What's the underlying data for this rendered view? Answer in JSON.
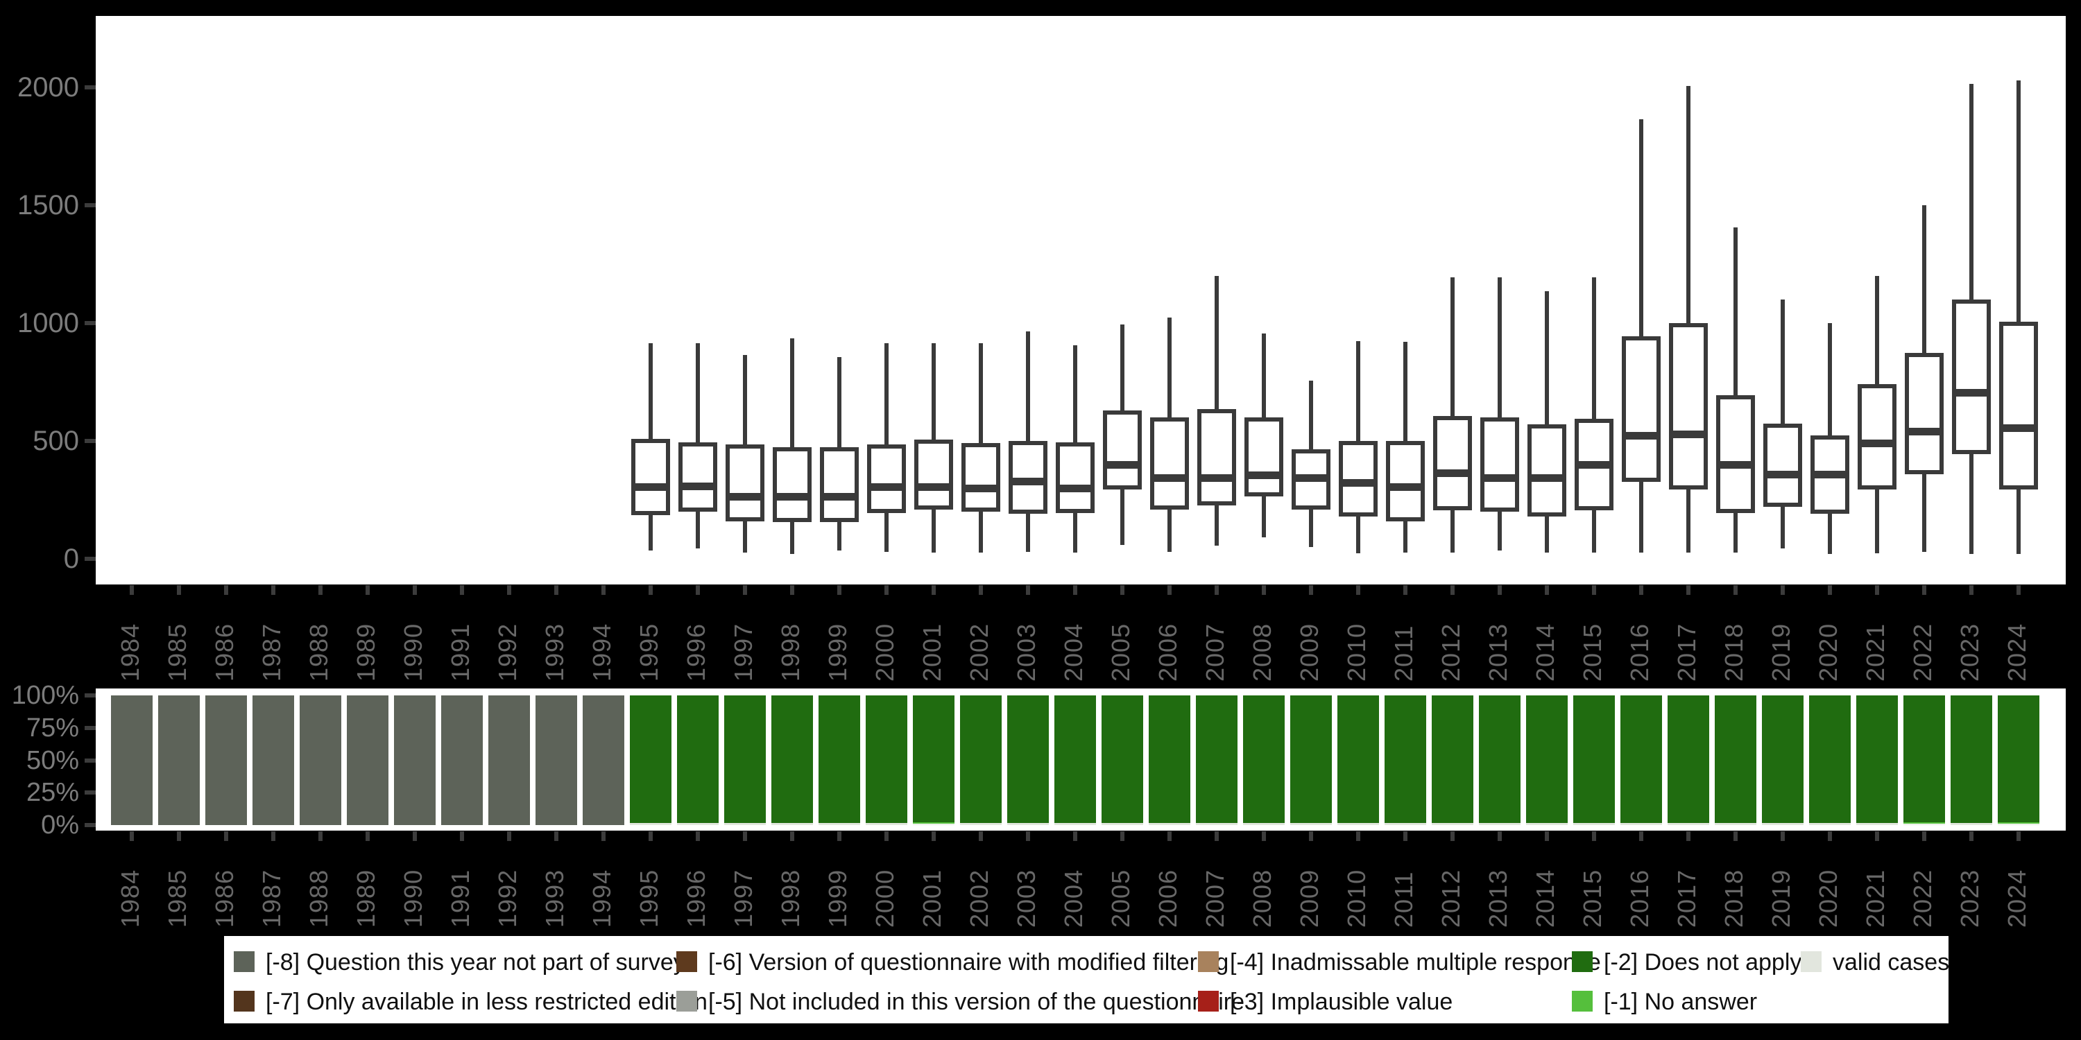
{
  "page": {
    "background": "#000000",
    "plot_background": "#ffffff"
  },
  "colors": {
    "box_stroke": "#3a3a3a",
    "axis_text": "#7c7c7c",
    "year_text": "#686868",
    "tick": "#3c3c3c",
    "q_not_part": "#5d6359",
    "less_restricted": "#53351d",
    "modified_filtering": "#5e3a1e",
    "not_included": "#9b9e98",
    "inadmissable": "#a8825d",
    "implausible": "#a62019",
    "does_not_apply": "#206c10",
    "no_answer": "#55bf3c",
    "valid": "#e2e6de"
  },
  "chart_data": [
    {
      "type": "boxplot",
      "title": "",
      "xlabel": "",
      "ylabel": "",
      "ytick_labels": [
        "0",
        "500",
        "1000",
        "1500",
        "2000"
      ],
      "ytick_values": [
        0,
        500,
        1000,
        1500,
        2000
      ],
      "ylim": [
        -110,
        2300
      ],
      "grid": false,
      "categories": [
        1984,
        1985,
        1986,
        1987,
        1988,
        1989,
        1990,
        1991,
        1992,
        1993,
        1994,
        1995,
        1996,
        1997,
        1998,
        1999,
        2000,
        2001,
        2002,
        2003,
        2004,
        2005,
        2006,
        2007,
        2008,
        2009,
        2010,
        2011,
        2012,
        2013,
        2014,
        2015,
        2016,
        2017,
        2018,
        2019,
        2020,
        2021,
        2022,
        2023,
        2024
      ],
      "empty_years": [
        1984,
        1985,
        1986,
        1987,
        1988,
        1989,
        1990,
        1991,
        1992,
        1993,
        1994
      ],
      "boxes": [
        {
          "year": 1995,
          "min": 35,
          "q1": 185,
          "median": 305,
          "q3": 510,
          "max": 915
        },
        {
          "year": 1996,
          "min": 45,
          "q1": 200,
          "median": 310,
          "q3": 495,
          "max": 915
        },
        {
          "year": 1997,
          "min": 25,
          "q1": 160,
          "median": 265,
          "q3": 485,
          "max": 865
        },
        {
          "year": 1998,
          "min": 20,
          "q1": 155,
          "median": 265,
          "q3": 475,
          "max": 935
        },
        {
          "year": 1999,
          "min": 35,
          "q1": 155,
          "median": 265,
          "q3": 475,
          "max": 855
        },
        {
          "year": 2000,
          "min": 30,
          "q1": 195,
          "median": 305,
          "q3": 485,
          "max": 915
        },
        {
          "year": 2001,
          "min": 25,
          "q1": 210,
          "median": 305,
          "q3": 505,
          "max": 915
        },
        {
          "year": 2002,
          "min": 25,
          "q1": 200,
          "median": 300,
          "q3": 490,
          "max": 915
        },
        {
          "year": 2003,
          "min": 30,
          "q1": 190,
          "median": 330,
          "q3": 500,
          "max": 965
        },
        {
          "year": 2004,
          "min": 25,
          "q1": 195,
          "median": 300,
          "q3": 495,
          "max": 905
        },
        {
          "year": 2005,
          "min": 60,
          "q1": 295,
          "median": 400,
          "q3": 630,
          "max": 995
        },
        {
          "year": 2006,
          "min": 30,
          "q1": 210,
          "median": 345,
          "q3": 600,
          "max": 1025
        },
        {
          "year": 2007,
          "min": 55,
          "q1": 225,
          "median": 345,
          "q3": 635,
          "max": 1200
        },
        {
          "year": 2008,
          "min": 90,
          "q1": 265,
          "median": 355,
          "q3": 600,
          "max": 955
        },
        {
          "year": 2009,
          "min": 50,
          "q1": 210,
          "median": 345,
          "q3": 465,
          "max": 755
        },
        {
          "year": 2010,
          "min": 25,
          "q1": 180,
          "median": 325,
          "q3": 500,
          "max": 925
        },
        {
          "year": 2011,
          "min": 25,
          "q1": 160,
          "median": 305,
          "q3": 500,
          "max": 920
        },
        {
          "year": 2012,
          "min": 25,
          "q1": 205,
          "median": 365,
          "q3": 605,
          "max": 1195
        },
        {
          "year": 2013,
          "min": 35,
          "q1": 200,
          "median": 345,
          "q3": 600,
          "max": 1195
        },
        {
          "year": 2014,
          "min": 25,
          "q1": 180,
          "median": 345,
          "q3": 570,
          "max": 1135
        },
        {
          "year": 2015,
          "min": 25,
          "q1": 205,
          "median": 400,
          "q3": 595,
          "max": 1195
        },
        {
          "year": 2016,
          "min": 25,
          "q1": 325,
          "median": 525,
          "q3": 945,
          "max": 1865
        },
        {
          "year": 2017,
          "min": 25,
          "q1": 295,
          "median": 530,
          "q3": 1000,
          "max": 2005
        },
        {
          "year": 2018,
          "min": 25,
          "q1": 195,
          "median": 400,
          "q3": 695,
          "max": 1405
        },
        {
          "year": 2019,
          "min": 45,
          "q1": 220,
          "median": 360,
          "q3": 575,
          "max": 1100
        },
        {
          "year": 2020,
          "min": 20,
          "q1": 190,
          "median": 360,
          "q3": 525,
          "max": 1000
        },
        {
          "year": 2021,
          "min": 25,
          "q1": 295,
          "median": 490,
          "q3": 740,
          "max": 1200
        },
        {
          "year": 2022,
          "min": 30,
          "q1": 360,
          "median": 540,
          "q3": 875,
          "max": 1500
        },
        {
          "year": 2023,
          "min": 20,
          "q1": 445,
          "median": 705,
          "q3": 1100,
          "max": 2015
        },
        {
          "year": 2024,
          "min": 20,
          "q1": 295,
          "median": 555,
          "q3": 1005,
          "max": 2030
        }
      ]
    },
    {
      "type": "stacked_bar_percent",
      "title": "",
      "ytick_labels": [
        "0%",
        "25%",
        "50%",
        "75%",
        "100%"
      ],
      "ytick_values": [
        0,
        25,
        50,
        75,
        100
      ],
      "ylim": [
        0,
        100
      ],
      "grid": false,
      "categories": [
        1984,
        1985,
        1986,
        1987,
        1988,
        1989,
        1990,
        1991,
        1992,
        1993,
        1994,
        1995,
        1996,
        1997,
        1998,
        1999,
        2000,
        2001,
        2002,
        2003,
        2004,
        2005,
        2006,
        2007,
        2008,
        2009,
        2010,
        2011,
        2012,
        2013,
        2014,
        2015,
        2016,
        2017,
        2018,
        2019,
        2020,
        2021,
        2022,
        2023,
        2024
      ],
      "bars": [
        {
          "year": 1984,
          "segments": [
            {
              "key": "q_not_part",
              "pct": 100
            }
          ]
        },
        {
          "year": 1985,
          "segments": [
            {
              "key": "q_not_part",
              "pct": 100
            }
          ]
        },
        {
          "year": 1986,
          "segments": [
            {
              "key": "q_not_part",
              "pct": 100
            }
          ]
        },
        {
          "year": 1987,
          "segments": [
            {
              "key": "q_not_part",
              "pct": 100
            }
          ]
        },
        {
          "year": 1988,
          "segments": [
            {
              "key": "q_not_part",
              "pct": 100
            }
          ]
        },
        {
          "year": 1989,
          "segments": [
            {
              "key": "q_not_part",
              "pct": 100
            }
          ]
        },
        {
          "year": 1990,
          "segments": [
            {
              "key": "q_not_part",
              "pct": 100
            }
          ]
        },
        {
          "year": 1991,
          "segments": [
            {
              "key": "q_not_part",
              "pct": 100
            }
          ]
        },
        {
          "year": 1992,
          "segments": [
            {
              "key": "q_not_part",
              "pct": 100
            }
          ]
        },
        {
          "year": 1993,
          "segments": [
            {
              "key": "q_not_part",
              "pct": 100
            }
          ]
        },
        {
          "year": 1994,
          "segments": [
            {
              "key": "q_not_part",
              "pct": 100
            }
          ]
        },
        {
          "year": 1995,
          "segments": [
            {
              "key": "does_not_apply",
              "pct": 98.5
            },
            {
              "key": "valid",
              "pct": 1.5
            }
          ]
        },
        {
          "year": 1996,
          "segments": [
            {
              "key": "does_not_apply",
              "pct": 98.5
            },
            {
              "key": "valid",
              "pct": 1.5
            }
          ]
        },
        {
          "year": 1997,
          "segments": [
            {
              "key": "does_not_apply",
              "pct": 98.5
            },
            {
              "key": "valid",
              "pct": 1.5
            }
          ]
        },
        {
          "year": 1998,
          "segments": [
            {
              "key": "does_not_apply",
              "pct": 98.5
            },
            {
              "key": "valid",
              "pct": 1.5
            }
          ]
        },
        {
          "year": 1999,
          "segments": [
            {
              "key": "does_not_apply",
              "pct": 98.5
            },
            {
              "key": "valid",
              "pct": 1.5
            }
          ]
        },
        {
          "year": 2000,
          "segments": [
            {
              "key": "does_not_apply",
              "pct": 98.5
            },
            {
              "key": "valid",
              "pct": 1.5
            }
          ]
        },
        {
          "year": 2001,
          "segments": [
            {
              "key": "does_not_apply",
              "pct": 98
            },
            {
              "key": "no_answer",
              "pct": 1.2
            },
            {
              "key": "valid",
              "pct": 0.8
            }
          ]
        },
        {
          "year": 2002,
          "segments": [
            {
              "key": "does_not_apply",
              "pct": 98.5
            },
            {
              "key": "valid",
              "pct": 1.5
            }
          ]
        },
        {
          "year": 2003,
          "segments": [
            {
              "key": "does_not_apply",
              "pct": 98.5
            },
            {
              "key": "valid",
              "pct": 1.5
            }
          ]
        },
        {
          "year": 2004,
          "segments": [
            {
              "key": "does_not_apply",
              "pct": 98.5
            },
            {
              "key": "valid",
              "pct": 1.5
            }
          ]
        },
        {
          "year": 2005,
          "segments": [
            {
              "key": "does_not_apply",
              "pct": 98.5
            },
            {
              "key": "valid",
              "pct": 1.5
            }
          ]
        },
        {
          "year": 2006,
          "segments": [
            {
              "key": "does_not_apply",
              "pct": 98.5
            },
            {
              "key": "valid",
              "pct": 1.5
            }
          ]
        },
        {
          "year": 2007,
          "segments": [
            {
              "key": "does_not_apply",
              "pct": 98.5
            },
            {
              "key": "valid",
              "pct": 1.5
            }
          ]
        },
        {
          "year": 2008,
          "segments": [
            {
              "key": "does_not_apply",
              "pct": 98.5
            },
            {
              "key": "valid",
              "pct": 1.5
            }
          ]
        },
        {
          "year": 2009,
          "segments": [
            {
              "key": "does_not_apply",
              "pct": 98.5
            },
            {
              "key": "valid",
              "pct": 1.5
            }
          ]
        },
        {
          "year": 2010,
          "segments": [
            {
              "key": "does_not_apply",
              "pct": 98.5
            },
            {
              "key": "valid",
              "pct": 1.5
            }
          ]
        },
        {
          "year": 2011,
          "segments": [
            {
              "key": "does_not_apply",
              "pct": 98.5
            },
            {
              "key": "valid",
              "pct": 1.5
            }
          ]
        },
        {
          "year": 2012,
          "segments": [
            {
              "key": "does_not_apply",
              "pct": 98.5
            },
            {
              "key": "valid",
              "pct": 1.5
            }
          ]
        },
        {
          "year": 2013,
          "segments": [
            {
              "key": "does_not_apply",
              "pct": 98.5
            },
            {
              "key": "valid",
              "pct": 1.5
            }
          ]
        },
        {
          "year": 2014,
          "segments": [
            {
              "key": "does_not_apply",
              "pct": 98.5
            },
            {
              "key": "valid",
              "pct": 1.5
            }
          ]
        },
        {
          "year": 2015,
          "segments": [
            {
              "key": "does_not_apply",
              "pct": 98.5
            },
            {
              "key": "valid",
              "pct": 1.5
            }
          ]
        },
        {
          "year": 2016,
          "segments": [
            {
              "key": "does_not_apply",
              "pct": 98.5
            },
            {
              "key": "valid",
              "pct": 1.5
            }
          ]
        },
        {
          "year": 2017,
          "segments": [
            {
              "key": "does_not_apply",
              "pct": 98.5
            },
            {
              "key": "valid",
              "pct": 1.5
            }
          ]
        },
        {
          "year": 2018,
          "segments": [
            {
              "key": "does_not_apply",
              "pct": 98.5
            },
            {
              "key": "valid",
              "pct": 1.5
            }
          ]
        },
        {
          "year": 2019,
          "segments": [
            {
              "key": "does_not_apply",
              "pct": 98.5
            },
            {
              "key": "valid",
              "pct": 1.5
            }
          ]
        },
        {
          "year": 2020,
          "segments": [
            {
              "key": "does_not_apply",
              "pct": 98.5
            },
            {
              "key": "valid",
              "pct": 1.5
            }
          ]
        },
        {
          "year": 2021,
          "segments": [
            {
              "key": "does_not_apply",
              "pct": 98.5
            },
            {
              "key": "valid",
              "pct": 1.5
            }
          ]
        },
        {
          "year": 2022,
          "segments": [
            {
              "key": "does_not_apply",
              "pct": 98
            },
            {
              "key": "no_answer",
              "pct": 1.2
            },
            {
              "key": "valid",
              "pct": 0.8
            }
          ]
        },
        {
          "year": 2023,
          "segments": [
            {
              "key": "does_not_apply",
              "pct": 98.5
            },
            {
              "key": "valid",
              "pct": 1.5
            }
          ]
        },
        {
          "year": 2024,
          "segments": [
            {
              "key": "does_not_apply",
              "pct": 98
            },
            {
              "key": "no_answer",
              "pct": 1.2
            },
            {
              "key": "valid",
              "pct": 0.8
            }
          ]
        }
      ]
    }
  ],
  "legend": {
    "entries": [
      {
        "row": 0,
        "col": 0,
        "key": "q_not_part",
        "label": "[-8] Question this year not part of survey"
      },
      {
        "row": 1,
        "col": 0,
        "key": "less_restricted",
        "label": "[-7] Only available in less restricted edition"
      },
      {
        "row": 0,
        "col": 1,
        "key": "modified_filtering",
        "label": "[-6] Version of questionnaire with modified filtering"
      },
      {
        "row": 1,
        "col": 1,
        "key": "not_included",
        "label": "[-5] Not included in this version of the questionnaire"
      },
      {
        "row": 0,
        "col": 2,
        "key": "inadmissable",
        "label": "[-4] Inadmissable multiple response"
      },
      {
        "row": 1,
        "col": 2,
        "key": "implausible",
        "label": "[-3] Implausible value"
      },
      {
        "row": 0,
        "col": 3,
        "key": "does_not_apply",
        "label": "[-2] Does not apply"
      },
      {
        "row": 1,
        "col": 3,
        "key": "no_answer",
        "label": "[-1] No answer"
      },
      {
        "row": 0,
        "col": 4,
        "key": "valid",
        "label": "valid cases"
      }
    ]
  }
}
